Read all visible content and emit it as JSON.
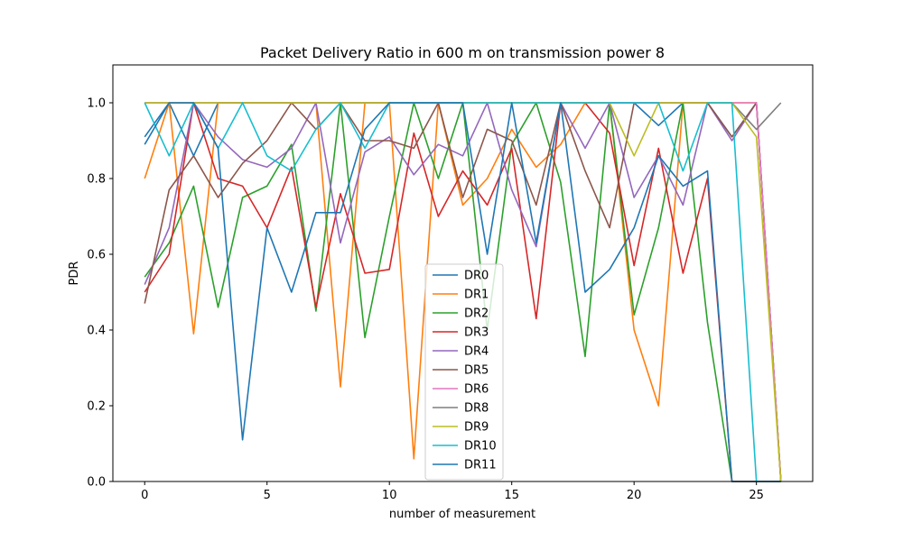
{
  "chart_data": {
    "type": "line",
    "title": "Packet Delivery Ratio in 600 m on transmission power 8",
    "xlabel": "number of measurement",
    "ylabel": "PDR",
    "xlim": [
      -1.3,
      27.3
    ],
    "ylim": [
      0,
      1.1
    ],
    "xticks": [
      0,
      5,
      10,
      15,
      20,
      25
    ],
    "yticks": [
      0.0,
      0.2,
      0.4,
      0.6,
      0.8,
      1.0
    ],
    "xtick_labels": [
      "0",
      "5",
      "10",
      "15",
      "20",
      "25"
    ],
    "ytick_labels": [
      "0.0",
      "0.2",
      "0.4",
      "0.6",
      "0.8",
      "1.0"
    ],
    "grid": false,
    "legend_position": "lower-center",
    "series": [
      {
        "name": "DR0",
        "color": "#1f77b4",
        "x": [
          0,
          1,
          2,
          3,
          4,
          5,
          6,
          7,
          8,
          9,
          10,
          11,
          12,
          13,
          14,
          15,
          16,
          17,
          18,
          19,
          20,
          21,
          22,
          23,
          24,
          25,
          26
        ],
        "y": [
          0.91,
          1.0,
          0.86,
          1.0,
          1.0,
          1.0,
          1.0,
          1.0,
          1.0,
          1.0,
          1.0,
          1.0,
          1.0,
          1.0,
          1.0,
          1.0,
          1.0,
          1.0,
          1.0,
          1.0,
          1.0,
          0.94,
          1.0,
          1.0,
          0.91,
          1.0,
          0.0
        ]
      },
      {
        "name": "DR1",
        "color": "#ff7f0e",
        "x": [
          0,
          1,
          2,
          3,
          4,
          5,
          6,
          7,
          8,
          9,
          10,
          11,
          12,
          13,
          14,
          15,
          16,
          17,
          18,
          19,
          20,
          21,
          22,
          23,
          24,
          25,
          26
        ],
        "y": [
          0.8,
          1.0,
          0.39,
          1.0,
          1.0,
          1.0,
          1.0,
          1.0,
          0.25,
          1.0,
          1.0,
          0.06,
          1.0,
          0.73,
          0.8,
          0.93,
          0.83,
          0.89,
          1.0,
          1.0,
          0.4,
          0.2,
          1.0,
          1.0,
          1.0,
          1.0,
          0.0
        ]
      },
      {
        "name": "DR2",
        "color": "#2ca02c",
        "x": [
          0,
          1,
          2,
          3,
          4,
          5,
          6,
          7,
          8,
          9,
          10,
          11,
          12,
          13,
          14,
          15,
          16,
          17,
          18,
          19,
          20,
          21,
          22,
          23,
          24,
          25,
          26
        ],
        "y": [
          0.54,
          0.63,
          0.78,
          0.46,
          0.75,
          0.78,
          0.89,
          0.45,
          1.0,
          0.38,
          0.7,
          1.0,
          0.8,
          1.0,
          0.4,
          0.89,
          1.0,
          0.79,
          0.33,
          1.0,
          0.44,
          0.67,
          1.0,
          0.42,
          0.0,
          0.0,
          0.0
        ]
      },
      {
        "name": "DR3",
        "color": "#d62728",
        "x": [
          0,
          1,
          2,
          3,
          4,
          5,
          6,
          7,
          8,
          9,
          10,
          11,
          12,
          13,
          14,
          15,
          16,
          17,
          18,
          19,
          20,
          21,
          22,
          23,
          24,
          25,
          26
        ],
        "y": [
          0.5,
          0.6,
          1.0,
          0.8,
          0.78,
          0.67,
          0.83,
          0.46,
          0.76,
          0.55,
          0.56,
          0.92,
          0.7,
          0.82,
          0.73,
          0.88,
          0.43,
          1.0,
          1.0,
          0.92,
          0.57,
          0.88,
          0.55,
          0.8,
          0.0,
          0.0,
          0.0
        ]
      },
      {
        "name": "DR4",
        "color": "#9467bd",
        "x": [
          0,
          1,
          2,
          3,
          4,
          5,
          6,
          7,
          8,
          9,
          10,
          11,
          12,
          13,
          14,
          15,
          16,
          17,
          18,
          19,
          20,
          21,
          22,
          23,
          24,
          25,
          26
        ],
        "y": [
          0.52,
          0.67,
          1.0,
          0.91,
          0.85,
          0.83,
          0.88,
          1.0,
          0.63,
          0.87,
          0.91,
          0.81,
          0.89,
          0.86,
          1.0,
          0.77,
          0.62,
          1.0,
          0.88,
          1.0,
          0.75,
          0.86,
          0.73,
          1.0,
          0.9,
          1.0,
          0.0
        ]
      },
      {
        "name": "DR5",
        "color": "#8c564b",
        "x": [
          0,
          1,
          2,
          3,
          4,
          5,
          6,
          7,
          8,
          9,
          10,
          11,
          12,
          13,
          14,
          15,
          16,
          17,
          18,
          19,
          20,
          21,
          22,
          23,
          24,
          25,
          26
        ],
        "y": [
          0.47,
          0.77,
          0.86,
          0.75,
          0.84,
          0.9,
          1.0,
          0.93,
          1.0,
          0.9,
          0.9,
          0.88,
          1.0,
          0.75,
          0.93,
          0.9,
          0.73,
          1.0,
          0.82,
          0.67,
          1.0,
          1.0,
          1.0,
          1.0,
          0.91,
          1.0,
          0.0
        ]
      },
      {
        "name": "DR6",
        "color": "#e377c2",
        "x": [
          0,
          1,
          2,
          3,
          4,
          5,
          6,
          7,
          8,
          9,
          10,
          11,
          12,
          13,
          14,
          15,
          16,
          17,
          18,
          19,
          20,
          21,
          22,
          23,
          24,
          25,
          26
        ],
        "y": [
          1.0,
          1.0,
          1.0,
          1.0,
          1.0,
          1.0,
          1.0,
          1.0,
          1.0,
          1.0,
          1.0,
          1.0,
          1.0,
          1.0,
          1.0,
          1.0,
          1.0,
          1.0,
          1.0,
          1.0,
          1.0,
          1.0,
          1.0,
          1.0,
          1.0,
          1.0,
          0.0
        ]
      },
      {
        "name": "DR8",
        "color": "#7f7f7f",
        "x": [
          0,
          1,
          2,
          3,
          4,
          5,
          6,
          7,
          8,
          9,
          10,
          11,
          12,
          13,
          14,
          15,
          16,
          17,
          18,
          19,
          20,
          21,
          22,
          23,
          24,
          25,
          26
        ],
        "y": [
          1.0,
          1.0,
          1.0,
          1.0,
          1.0,
          1.0,
          1.0,
          1.0,
          1.0,
          1.0,
          1.0,
          1.0,
          1.0,
          1.0,
          1.0,
          1.0,
          1.0,
          1.0,
          1.0,
          1.0,
          1.0,
          1.0,
          1.0,
          1.0,
          1.0,
          0.93,
          1.0
        ]
      },
      {
        "name": "DR9",
        "color": "#bcbd22",
        "x": [
          0,
          1,
          2,
          3,
          4,
          5,
          6,
          7,
          8,
          9,
          10,
          11,
          12,
          13,
          14,
          15,
          16,
          17,
          18,
          19,
          20,
          21,
          22,
          23,
          24,
          25,
          26
        ],
        "y": [
          1.0,
          1.0,
          1.0,
          1.0,
          1.0,
          1.0,
          1.0,
          1.0,
          1.0,
          1.0,
          1.0,
          1.0,
          1.0,
          1.0,
          1.0,
          1.0,
          1.0,
          1.0,
          1.0,
          1.0,
          0.86,
          1.0,
          1.0,
          1.0,
          1.0,
          0.91,
          0.0
        ]
      },
      {
        "name": "DR10",
        "color": "#17becf",
        "x": [
          0,
          1,
          2,
          3,
          4,
          5,
          6,
          7,
          8,
          9,
          10,
          11,
          12,
          13,
          14,
          15,
          16,
          17,
          18,
          19,
          20,
          21,
          22,
          23,
          24,
          25,
          26
        ],
        "y": [
          1.0,
          0.86,
          1.0,
          0.88,
          1.0,
          0.86,
          0.82,
          0.93,
          1.0,
          0.88,
          1.0,
          1.0,
          1.0,
          1.0,
          1.0,
          1.0,
          1.0,
          1.0,
          1.0,
          1.0,
          1.0,
          1.0,
          0.82,
          1.0,
          1.0,
          0.0,
          0.0
        ]
      },
      {
        "name": "DR11",
        "color": "#1f77b4",
        "x": [
          0,
          1,
          2,
          3,
          4,
          5,
          6,
          7,
          8,
          9,
          10,
          11,
          12,
          13,
          14,
          15,
          16,
          17,
          18,
          19,
          20,
          21,
          22,
          23,
          24,
          25,
          26
        ],
        "y": [
          0.89,
          1.0,
          1.0,
          0.88,
          0.11,
          0.67,
          0.5,
          0.71,
          0.71,
          0.93,
          1.0,
          1.0,
          1.0,
          1.0,
          0.6,
          1.0,
          0.63,
          1.0,
          0.5,
          0.56,
          0.67,
          0.86,
          0.78,
          0.82,
          0.0,
          0.0,
          0.0
        ]
      }
    ]
  }
}
